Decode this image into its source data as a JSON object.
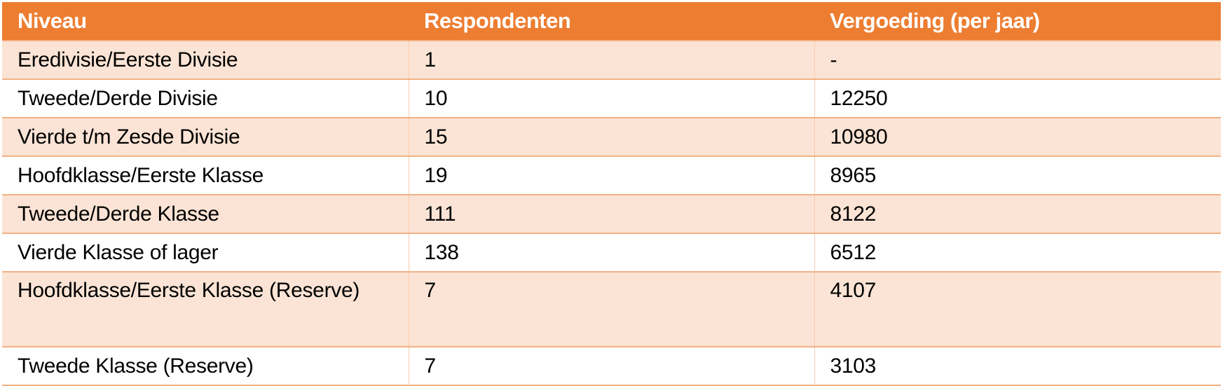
{
  "table": {
    "headers": [
      "Niveau",
      "Respondenten",
      "Vergoeding (per jaar)"
    ],
    "rows": [
      [
        "Eredivisie/Eerste Divisie",
        "1",
        "-"
      ],
      [
        "Tweede/Derde Divisie",
        "10",
        "12250"
      ],
      [
        "Vierde t/m Zesde Divisie",
        "15",
        "10980"
      ],
      [
        "Hoofdklasse/Eerste Klasse",
        "19",
        "8965"
      ],
      [
        "Tweede/Derde Klasse",
        "111",
        "8122"
      ],
      [
        "Vierde Klasse of lager",
        "138",
        "6512"
      ],
      [
        "Hoofdklasse/Eerste Klasse (Reserve)",
        "7",
        "4107"
      ],
      [
        "Tweede Klasse (Reserve)",
        "7",
        "3103"
      ]
    ],
    "colors": {
      "header": "#ED7D31",
      "band": "#FBE4D5",
      "border": "#F4B183"
    }
  }
}
